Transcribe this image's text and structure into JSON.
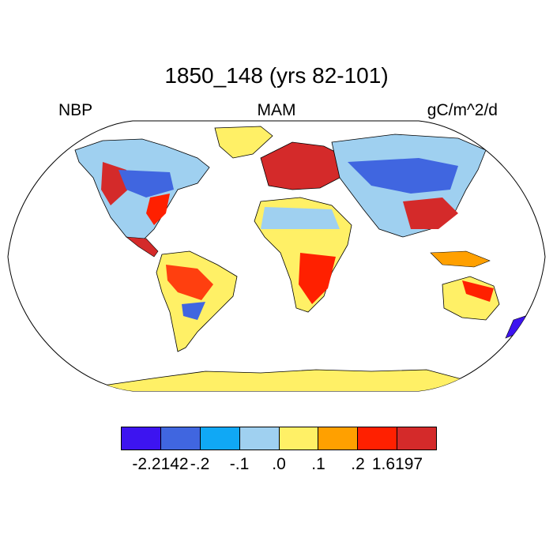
{
  "title": "1850_148 (yrs 82-101)",
  "left_label": "NBP",
  "center_label": "MAM",
  "right_label": "gC/m^2/d",
  "colorbar": {
    "colors": [
      "#3d14f0",
      "#4066e0",
      "#10a8f5",
      "#9fd0f0",
      "#fff066",
      "#ffa000",
      "#ff2000",
      "#d42a2a"
    ],
    "labels": [
      "-2.2142",
      "-.2",
      "-.1",
      ".0",
      ".1",
      ".2",
      "1.6197"
    ]
  },
  "map_colors": {
    "ocean": "#ffffff",
    "coast": "#000000",
    "frame": "#000000"
  }
}
